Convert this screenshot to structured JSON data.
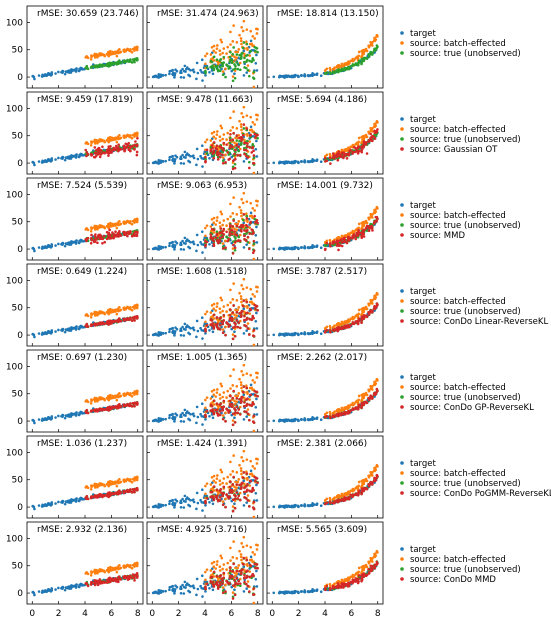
{
  "colors": {
    "target": "#1f77b4",
    "batch": "#ff7f0e",
    "true": "#2ca02c",
    "method": "#d62728"
  },
  "chart_data": {
    "type": "scatter",
    "layout": "7 rows x 3 columns of scatter panels with shared axes",
    "xlim": [
      -0.4,
      8.4
    ],
    "ylim": [
      -20,
      130
    ],
    "x_ticks": [
      "0",
      "2",
      "4",
      "6",
      "8"
    ],
    "y_ticks": [
      "0",
      "50",
      "100"
    ],
    "columns": [
      {
        "scenario": "linear",
        "target_x": [
          0,
          8
        ],
        "source_x": [
          4,
          8
        ]
      },
      {
        "scenario": "heteroscedastic",
        "target_x": [
          0,
          8
        ],
        "source_x": [
          4,
          8
        ]
      },
      {
        "scenario": "exponential",
        "target_x": [
          0,
          8
        ],
        "source_x": [
          4,
          8
        ]
      }
    ],
    "legend_fixed": [
      "target",
      "source: batch-effected",
      "source: true (unobserved)"
    ],
    "rows": [
      {
        "method": null,
        "rmse": [
          "rMSE: 30.659 (23.746)",
          "rMSE: 31.474 (24.963)",
          "rMSE: 18.814 (13.150)"
        ]
      },
      {
        "method": "source: Gaussian OT",
        "rmse": [
          "rMSE: 9.459 (17.819)",
          "rMSE: 9.478 (11.663)",
          "rMSE: 5.694 (4.186)"
        ]
      },
      {
        "method": "source: MMD",
        "rmse": [
          "rMSE: 7.524  (5.539)",
          "rMSE: 9.063  (6.953)",
          "rMSE: 14.001  (9.732)"
        ]
      },
      {
        "method": "source: ConDo Linear-ReverseKL",
        "rmse": [
          "rMSE: 0.649 (1.224)",
          "rMSE: 1.608 (1.518)",
          "rMSE: 3.787 (2.517)"
        ]
      },
      {
        "method": "source: ConDo GP-ReverseKL",
        "rmse": [
          "rMSE: 0.697 (1.230)",
          "rMSE: 1.005 (1.365)",
          "rMSE: 2.262 (2.017)"
        ]
      },
      {
        "method": "source: ConDo PoGMM-ReverseKL",
        "rmse": [
          "rMSE: 1.036 (1.237)",
          "rMSE: 1.424 (1.391)",
          "rMSE: 2.381 (2.066)"
        ]
      },
      {
        "method": "source: ConDo MMD",
        "rmse": [
          "rMSE: 2.932  (2.136)",
          "rMSE: 4.925  (3.716)",
          "rMSE: 5.565  (3.609)"
        ]
      }
    ]
  }
}
